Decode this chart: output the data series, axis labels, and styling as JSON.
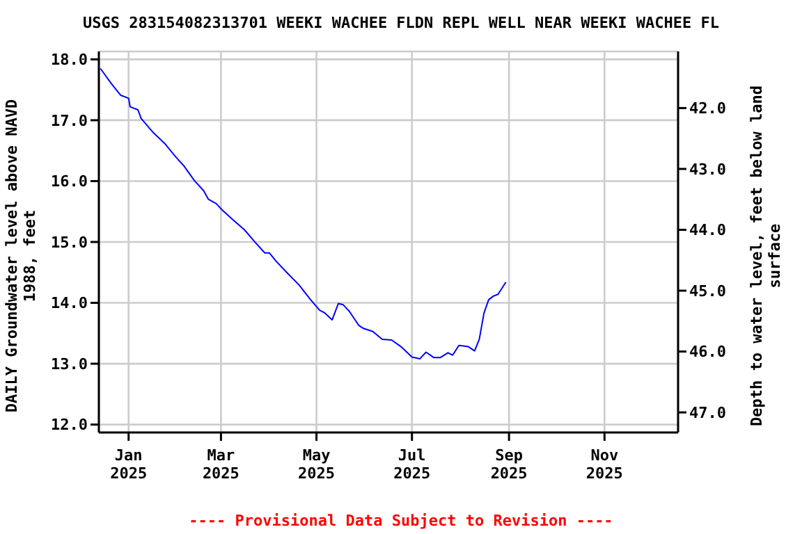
{
  "chart_data": {
    "type": "line",
    "title": "USGS 283154082313701 WEEKI WACHEE FLDN REPL WELL NEAR WEEKI WACHEE FL",
    "ylabel": "DAILY Groundwater level above NAVD 1988, feet",
    "y2label": "Depth to water level, feet below land surface",
    "annotations": [
      "---- Provisional Data Subject to Revision ----"
    ],
    "x": [
      "2024-12-14",
      "2024-12-21",
      "2024-12-27",
      "2025-01-01",
      "2025-01-02",
      "2025-01-07",
      "2025-01-09",
      "2025-01-17",
      "2025-01-24",
      "2025-01-31",
      "2025-02-05",
      "2025-02-12",
      "2025-02-18",
      "2025-02-21",
      "2025-02-26",
      "2025-03-02",
      "2025-03-08",
      "2025-03-16",
      "2025-03-23",
      "2025-03-29",
      "2025-04-01",
      "2025-04-05",
      "2025-04-12",
      "2025-04-20",
      "2025-04-27",
      "2025-05-03",
      "2025-05-06",
      "2025-05-11",
      "2025-05-15",
      "2025-05-18",
      "2025-05-22",
      "2025-05-28",
      "2025-05-31",
      "2025-06-06",
      "2025-06-12",
      "2025-06-18",
      "2025-06-24",
      "2025-07-01",
      "2025-07-06",
      "2025-07-10",
      "2025-07-15",
      "2025-07-19",
      "2025-07-24",
      "2025-07-27",
      "2025-07-31",
      "2025-08-06",
      "2025-08-10",
      "2025-08-13",
      "2025-08-16",
      "2025-08-19",
      "2025-08-22",
      "2025-08-25",
      "2025-08-30"
    ],
    "series": [
      {
        "color": "#0000ff",
        "values": [
          17.85,
          17.6,
          17.41,
          17.36,
          17.22,
          17.17,
          17.03,
          16.79,
          16.62,
          16.4,
          16.26,
          16.01,
          15.84,
          15.7,
          15.63,
          15.52,
          15.38,
          15.2,
          14.99,
          14.82,
          14.82,
          14.69,
          14.5,
          14.29,
          14.06,
          13.88,
          13.84,
          13.72,
          13.99,
          13.97,
          13.86,
          13.63,
          13.58,
          13.53,
          13.4,
          13.39,
          13.28,
          13.11,
          13.08,
          13.19,
          13.1,
          13.1,
          13.18,
          13.14,
          13.3,
          13.28,
          13.21,
          13.4,
          13.83,
          14.05,
          14.11,
          14.14,
          14.34
        ]
      }
    ],
    "xlim": [
      "2024-12-13",
      "2025-12-18"
    ],
    "xticks": [
      {
        "value": "2025-01-01",
        "label": "Jan 2025"
      },
      {
        "value": "2025-03-01",
        "label": "Mar 2025"
      },
      {
        "value": "2025-05-01",
        "label": "May 2025"
      },
      {
        "value": "2025-07-01",
        "label": "Jul 2025"
      },
      {
        "value": "2025-09-01",
        "label": "Sep 2025"
      },
      {
        "value": "2025-11-01",
        "label": "Nov 2025"
      }
    ],
    "ylim": [
      11.87,
      18.13
    ],
    "yticks": [
      {
        "value": 12,
        "label": "12.0"
      },
      {
        "value": 13,
        "label": "13.0"
      },
      {
        "value": 14,
        "label": "14.0"
      },
      {
        "value": 15,
        "label": "15.0"
      },
      {
        "value": 16,
        "label": "16.0"
      },
      {
        "value": 17,
        "label": "17.0"
      },
      {
        "value": 18,
        "label": "18.0"
      }
    ],
    "y2lim": [
      47.33,
      41.07
    ],
    "y2ticks": [
      {
        "value": 42,
        "label": "42.0"
      },
      {
        "value": 43,
        "label": "43.0"
      },
      {
        "value": 44,
        "label": "44.0"
      },
      {
        "value": 45,
        "label": "45.0"
      },
      {
        "value": 46,
        "label": "46.0"
      },
      {
        "value": 47,
        "label": "47.0"
      }
    ],
    "grid": true,
    "marker": "none",
    "line_style": "solid"
  }
}
